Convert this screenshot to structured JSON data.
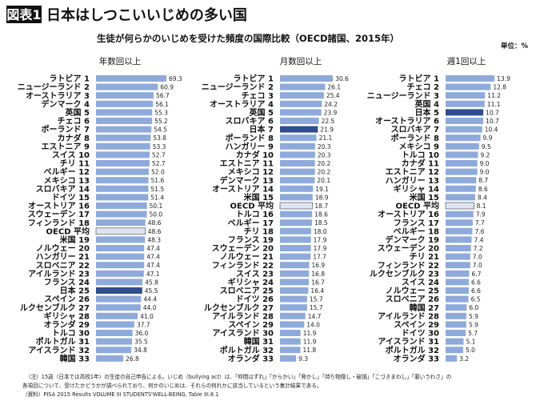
{
  "figure_label": "図表1",
  "headline": "日本はしつこいいじめの多い国",
  "chart_title": "生徒が何らかのいじめを受けた頻度の国際比較（OECD諸国、2015年）",
  "unit": "単位：%",
  "colors": {
    "bar": "#8eaadb",
    "japan": "#2f4d8f",
    "oecd": "#dde5f3",
    "oecd_border": "#555555"
  },
  "chart_data": [
    {
      "type": "bar",
      "orientation": "horizontal",
      "title": "年数回以上",
      "rows": [
        {
          "name": "ラトビア",
          "rank": "1",
          "value": 69.3
        },
        {
          "name": "ニュージーランド",
          "rank": "2",
          "value": 60.9
        },
        {
          "name": "オーストラリア",
          "rank": "3",
          "value": 56.7
        },
        {
          "name": "デンマーク",
          "rank": "4",
          "value": 56.1
        },
        {
          "name": "英国",
          "rank": "5",
          "value": 55.3
        },
        {
          "name": "チェコ",
          "rank": "6",
          "value": 55.2
        },
        {
          "name": "ポーランド",
          "rank": "7",
          "value": 54.5
        },
        {
          "name": "カナダ",
          "rank": "8",
          "value": 53.8
        },
        {
          "name": "エストニア",
          "rank": "9",
          "value": 53.3
        },
        {
          "name": "スイス",
          "rank": "10",
          "value": 52.7
        },
        {
          "name": "チリ",
          "rank": "11",
          "value": 52.7
        },
        {
          "name": "ベルギー",
          "rank": "12",
          "value": 52.0
        },
        {
          "name": "メキシコ",
          "rank": "13",
          "value": 51.6
        },
        {
          "name": "スロバキア",
          "rank": "14",
          "value": 51.5
        },
        {
          "name": "ドイツ",
          "rank": "15",
          "value": 51.4
        },
        {
          "name": "オーストリア",
          "rank": "16",
          "value": 50.1
        },
        {
          "name": "スウェーデン",
          "rank": "17",
          "value": 50.0
        },
        {
          "name": "フィンランド",
          "rank": "18",
          "value": 48.6
        },
        {
          "name": "OECD 平均",
          "rank": "",
          "value": 48.6,
          "kind": "oecd"
        },
        {
          "name": "米国",
          "rank": "19",
          "value": 48.3
        },
        {
          "name": "ノルウェー",
          "rank": "20",
          "value": 47.4
        },
        {
          "name": "ハンガリー",
          "rank": "21",
          "value": 47.4
        },
        {
          "name": "スロベニア",
          "rank": "22",
          "value": 47.4
        },
        {
          "name": "アイルランド",
          "rank": "23",
          "value": 47.1
        },
        {
          "name": "フランス",
          "rank": "24",
          "value": 45.8
        },
        {
          "name": "日本",
          "rank": "25",
          "value": 45.5,
          "kind": "japan"
        },
        {
          "name": "スペイン",
          "rank": "26",
          "value": 44.4
        },
        {
          "name": "ルクセンブルク",
          "rank": "27",
          "value": 44.0
        },
        {
          "name": "ギリシャ",
          "rank": "28",
          "value": 41.0
        },
        {
          "name": "オランダ",
          "rank": "29",
          "value": 37.7
        },
        {
          "name": "トルコ",
          "rank": "30",
          "value": 36.0
        },
        {
          "name": "ポルトガル",
          "rank": "31",
          "value": 35.5
        },
        {
          "name": "アイスランド",
          "rank": "32",
          "value": 34.8
        },
        {
          "name": "韓国",
          "rank": "33",
          "value": 26.8
        }
      ]
    },
    {
      "type": "bar",
      "orientation": "horizontal",
      "title": "月数回以上",
      "rows": [
        {
          "name": "ラトビア",
          "rank": "1",
          "value": 30.6
        },
        {
          "name": "ニュージーランド",
          "rank": "2",
          "value": 26.1
        },
        {
          "name": "チェコ",
          "rank": "3",
          "value": 25.4
        },
        {
          "name": "オーストラリア",
          "rank": "4",
          "value": 24.2
        },
        {
          "name": "英国",
          "rank": "5",
          "value": 23.9
        },
        {
          "name": "スロバキア",
          "rank": "6",
          "value": 22.5
        },
        {
          "name": "日本",
          "rank": "7",
          "value": 21.9,
          "kind": "japan"
        },
        {
          "name": "ポーランド",
          "rank": "8",
          "value": 21.1
        },
        {
          "name": "ハンガリー",
          "rank": "9",
          "value": 20.3
        },
        {
          "name": "カナダ",
          "rank": "10",
          "value": 20.3
        },
        {
          "name": "エストニア",
          "rank": "11",
          "value": 20.2
        },
        {
          "name": "メキシコ",
          "rank": "12",
          "value": 20.2
        },
        {
          "name": "デンマーク",
          "rank": "13",
          "value": 20.1
        },
        {
          "name": "オーストリア",
          "rank": "14",
          "value": 19.1
        },
        {
          "name": "米国",
          "rank": "15",
          "value": 18.9
        },
        {
          "name": "OECD 平均",
          "rank": "",
          "value": 18.7,
          "kind": "oecd"
        },
        {
          "name": "トルコ",
          "rank": "16",
          "value": 18.6
        },
        {
          "name": "ベルギー",
          "rank": "17",
          "value": 18.5
        },
        {
          "name": "チリ",
          "rank": "18",
          "value": 18.0
        },
        {
          "name": "フランス",
          "rank": "19",
          "value": 17.9
        },
        {
          "name": "スウェーデン",
          "rank": "20",
          "value": 17.9
        },
        {
          "name": "ノルウェー",
          "rank": "21",
          "value": 17.7
        },
        {
          "name": "フィンランド",
          "rank": "22",
          "value": 16.9
        },
        {
          "name": "スイス",
          "rank": "23",
          "value": 16.8
        },
        {
          "name": "ギリシャ",
          "rank": "24",
          "value": 16.7
        },
        {
          "name": "スロベニア",
          "rank": "25",
          "value": 16.4
        },
        {
          "name": "ドイツ",
          "rank": "26",
          "value": 15.7
        },
        {
          "name": "ルクセンブルク",
          "rank": "27",
          "value": 15.7
        },
        {
          "name": "アイルランド",
          "rank": "28",
          "value": 14.7
        },
        {
          "name": "スペイン",
          "rank": "29",
          "value": 14.0
        },
        {
          "name": "アイスランド",
          "rank": "30",
          "value": 11.9
        },
        {
          "name": "韓国",
          "rank": "31",
          "value": 11.9
        },
        {
          "name": "ポルトガル",
          "rank": "32",
          "value": 11.8
        },
        {
          "name": "オランダ",
          "rank": "33",
          "value": 9.3
        }
      ]
    },
    {
      "type": "bar",
      "orientation": "horizontal",
      "title": "週1回以上",
      "rows": [
        {
          "name": "ラトビア",
          "rank": "1",
          "value": 13.9
        },
        {
          "name": "チェコ",
          "rank": "2",
          "value": 12.8
        },
        {
          "name": "ニュージーランド",
          "rank": "3",
          "value": 11.2
        },
        {
          "name": "英国",
          "rank": "4",
          "value": 11.1
        },
        {
          "name": "日本",
          "rank": "5",
          "value": 10.7,
          "kind": "japan"
        },
        {
          "name": "オーストラリア",
          "rank": "6",
          "value": 10.7
        },
        {
          "name": "スロバキア",
          "rank": "7",
          "value": 10.4
        },
        {
          "name": "ポーランド",
          "rank": "8",
          "value": 9.9
        },
        {
          "name": "メキシコ",
          "rank": "9",
          "value": 9.5
        },
        {
          "name": "トルコ",
          "rank": "10",
          "value": 9.2
        },
        {
          "name": "カナダ",
          "rank": "11",
          "value": 9.0
        },
        {
          "name": "エストニア",
          "rank": "12",
          "value": 9.0
        },
        {
          "name": "ハンガリー",
          "rank": "13",
          "value": 8.7
        },
        {
          "name": "ギリシャ",
          "rank": "14",
          "value": 8.6
        },
        {
          "name": "米国",
          "rank": "15",
          "value": 8.4
        },
        {
          "name": "OECD 平均",
          "rank": "",
          "value": 8.1,
          "kind": "oecd"
        },
        {
          "name": "オーストリア",
          "rank": "16",
          "value": 7.9
        },
        {
          "name": "フランス",
          "rank": "17",
          "value": 7.7
        },
        {
          "name": "ベルギー",
          "rank": "18",
          "value": 7.6
        },
        {
          "name": "デンマーク",
          "rank": "19",
          "value": 7.4
        },
        {
          "name": "スウェーデン",
          "rank": "20",
          "value": 7.2
        },
        {
          "name": "チリ",
          "rank": "21",
          "value": 7.0
        },
        {
          "name": "フィンランド",
          "rank": "22",
          "value": 7.0
        },
        {
          "name": "ルクセンブルク",
          "rank": "23",
          "value": 6.7
        },
        {
          "name": "スイス",
          "rank": "24",
          "value": 6.6
        },
        {
          "name": "ノルウェー",
          "rank": "25",
          "value": 6.6
        },
        {
          "name": "スロベニア",
          "rank": "26",
          "value": 6.5
        },
        {
          "name": "韓国",
          "rank": "27",
          "value": 6.0
        },
        {
          "name": "アイルランド",
          "rank": "28",
          "value": 5.9
        },
        {
          "name": "スペイン",
          "rank": "29",
          "value": 5.9
        },
        {
          "name": "ドイツ",
          "rank": "30",
          "value": 5.7
        },
        {
          "name": "アイスランド",
          "rank": "31",
          "value": 5.1
        },
        {
          "name": "ポルトガル",
          "rank": "32",
          "value": 5.0
        },
        {
          "name": "オランダ",
          "rank": "33",
          "value": 3.2
        }
      ]
    }
  ],
  "notes": [
    "（注）15歳（日本では高校1年）の生徒の自己申告による。いじめ（bullying act）は、「仲間はずれ」「からかい」「脅かし」「持ち物隠し・破損」「こづきまわし」「悪いうわさ」の",
    "各項目について、受けたかどうかが調べられており、何かのいじめは、それらの何れかに該当しているという集計結果である。",
    "（資料）PISA 2015 Results VOLUME III STUDENTS'WELL-BEING, Table III.8.1"
  ]
}
